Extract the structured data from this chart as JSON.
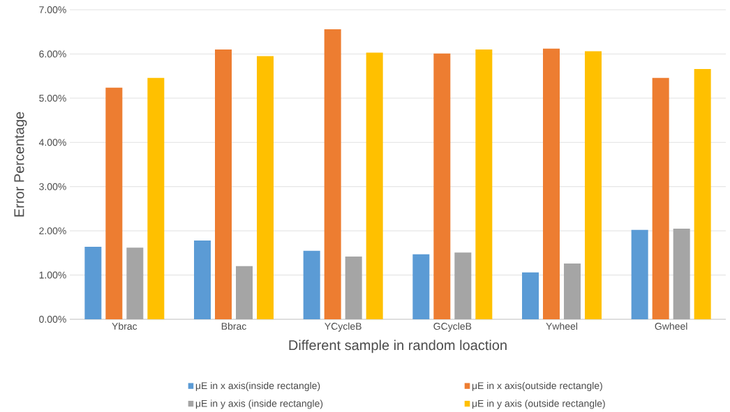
{
  "chart_data": {
    "type": "bar",
    "xlabel": "Different sample in random loaction",
    "ylabel": "Error Percentage",
    "categories": [
      "Ybrac",
      "Bbrac",
      "YCycleB",
      "GCycleB",
      "Ywheel",
      "Gwheel"
    ],
    "series": [
      {
        "name": "μE in x axis(inside rectangle)",
        "color": "#5b9bd5",
        "values": [
          1.64,
          1.78,
          1.55,
          1.47,
          1.06,
          2.02
        ]
      },
      {
        "name": "μE in x axis(outside rectangle)",
        "color": "#ed7d31",
        "values": [
          5.24,
          6.1,
          6.56,
          6.01,
          6.12,
          5.46
        ]
      },
      {
        "name": "μE in y axis (inside rectangle)",
        "color": "#a5a5a5",
        "values": [
          1.62,
          1.2,
          1.42,
          1.51,
          1.26,
          2.05
        ]
      },
      {
        "name": "μE in y axis (outside rectangle)",
        "color": "#ffc000",
        "values": [
          5.46,
          5.95,
          6.03,
          6.1,
          6.06,
          5.66
        ]
      }
    ],
    "ylim": [
      0,
      7
    ],
    "yticks": [
      {
        "value": 0,
        "label": "0.00%"
      },
      {
        "value": 1,
        "label": "1.00%"
      },
      {
        "value": 2,
        "label": "2.00%"
      },
      {
        "value": 3,
        "label": "3.00%"
      },
      {
        "value": 4,
        "label": "4.00%"
      },
      {
        "value": 5,
        "label": "5.00%"
      },
      {
        "value": 6,
        "label": "6.00%"
      },
      {
        "value": 7,
        "label": "7.00%"
      }
    ],
    "grid": "y",
    "legend": "bottom"
  }
}
